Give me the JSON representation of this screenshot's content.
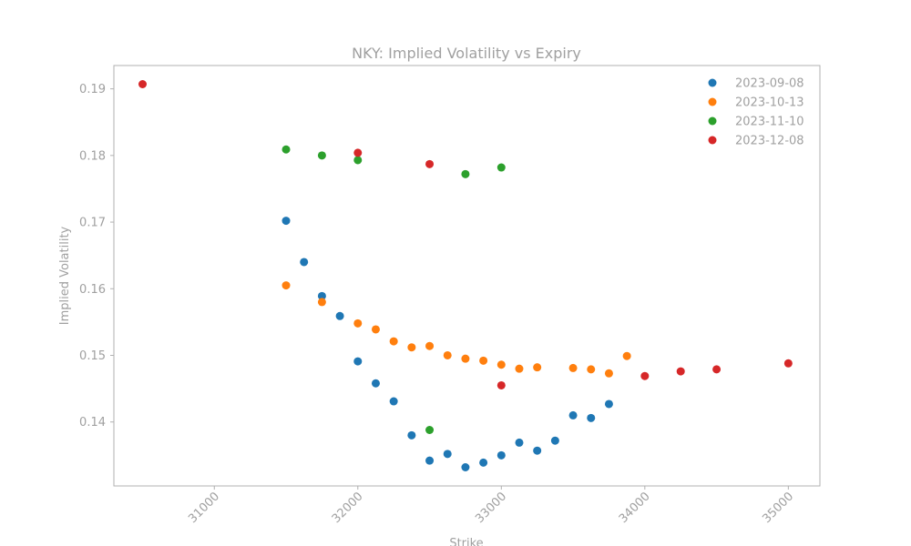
{
  "chart_data": {
    "type": "scatter",
    "title": "NKY: Implied Volatility vs Expiry",
    "xlabel": "Strike",
    "ylabel": "Implied Volatility",
    "xlim": [
      30300,
      35220
    ],
    "ylim": [
      0.1304,
      0.1935
    ],
    "xticks": [
      31000,
      32000,
      33000,
      34000,
      35000
    ],
    "yticks": [
      0.14,
      0.15,
      0.16,
      0.17,
      0.18,
      0.19
    ],
    "x_tick_labels": [
      "31000",
      "32000",
      "33000",
      "34000",
      "35000"
    ],
    "y_tick_labels": [
      "0.14",
      "0.15",
      "0.16",
      "0.17",
      "0.18",
      "0.19"
    ],
    "grid": false,
    "legend_position": "top-right",
    "series": [
      {
        "name": "2023-09-08",
        "color": "#1f77b4",
        "points": [
          [
            31500,
            0.1702
          ],
          [
            31625,
            0.164
          ],
          [
            31750,
            0.1589
          ],
          [
            31875,
            0.1559
          ],
          [
            32000,
            0.1491
          ],
          [
            32125,
            0.1458
          ],
          [
            32250,
            0.1431
          ],
          [
            32375,
            0.138
          ],
          [
            32500,
            0.1342
          ],
          [
            32625,
            0.1352
          ],
          [
            32750,
            0.1332
          ],
          [
            32875,
            0.1339
          ],
          [
            33000,
            0.135
          ],
          [
            33125,
            0.1369
          ],
          [
            33250,
            0.1357
          ],
          [
            33375,
            0.1372
          ],
          [
            33500,
            0.141
          ],
          [
            33625,
            0.1406
          ],
          [
            33750,
            0.1427
          ]
        ]
      },
      {
        "name": "2023-10-13",
        "color": "#ff7f0e",
        "points": [
          [
            31500,
            0.1605
          ],
          [
            31750,
            0.158
          ],
          [
            32000,
            0.1548
          ],
          [
            32125,
            0.1539
          ],
          [
            32250,
            0.1521
          ],
          [
            32375,
            0.1512
          ],
          [
            32500,
            0.1514
          ],
          [
            32625,
            0.15
          ],
          [
            32750,
            0.1495
          ],
          [
            32875,
            0.1492
          ],
          [
            33000,
            0.1486
          ],
          [
            33125,
            0.148
          ],
          [
            33250,
            0.1482
          ],
          [
            33500,
            0.1481
          ],
          [
            33625,
            0.1479
          ],
          [
            33750,
            0.1473
          ],
          [
            33875,
            0.1499
          ]
        ]
      },
      {
        "name": "2023-11-10",
        "color": "#2ca02c",
        "points": [
          [
            31500,
            0.1809
          ],
          [
            31750,
            0.18
          ],
          [
            32000,
            0.1793
          ],
          [
            32500,
            0.1388
          ],
          [
            32750,
            0.1772
          ],
          [
            33000,
            0.1782
          ]
        ]
      },
      {
        "name": "2023-12-08",
        "color": "#d62728",
        "points": [
          [
            30500,
            0.1907
          ],
          [
            32000,
            0.1804
          ],
          [
            32500,
            0.1787
          ],
          [
            33000,
            0.1455
          ],
          [
            34000,
            0.1469
          ],
          [
            34250,
            0.1476
          ],
          [
            34500,
            0.1479
          ],
          [
            35000,
            0.1488
          ]
        ]
      }
    ]
  }
}
